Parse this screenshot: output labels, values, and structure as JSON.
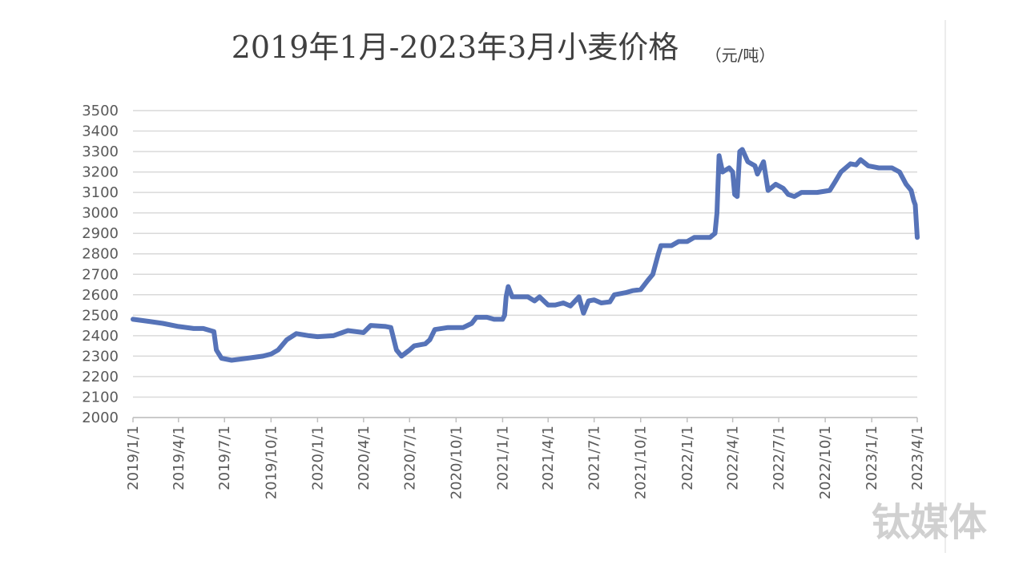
{
  "chart_data": {
    "type": "line",
    "title": "2019年1月-2023年3月小麦价格",
    "unit": "（元/吨）",
    "watermark": "钛媒体",
    "color": "#5673b8",
    "grid": true,
    "xlim": [
      "2019/1/1",
      "2023/4/1"
    ],
    "xticks": [
      "2019/1/1",
      "2019/4/1",
      "2019/7/1",
      "2019/10/1",
      "2020/1/1",
      "2020/4/1",
      "2020/7/1",
      "2020/10/1",
      "2021/1/1",
      "2021/4/1",
      "2021/7/1",
      "2021/10/1",
      "2022/1/1",
      "2022/4/1",
      "2022/7/1",
      "2022/10/1",
      "2023/1/1",
      "2023/4/1"
    ],
    "ylim": [
      2000,
      3500
    ],
    "yticks": [
      2000,
      2100,
      2200,
      2300,
      2400,
      2500,
      2600,
      2700,
      2800,
      2900,
      3000,
      3100,
      3200,
      3300,
      3400,
      3500
    ],
    "x": [
      "2019/1/1",
      "2019/2/1",
      "2019/3/1",
      "2019/4/1",
      "2019/5/1",
      "2019/5/20",
      "2019/6/10",
      "2019/6/15",
      "2019/6/25",
      "2019/7/15",
      "2019/8/15",
      "2019/9/15",
      "2019/10/1",
      "2019/10/15",
      "2019/11/1",
      "2019/11/20",
      "2019/12/15",
      "2020/1/1",
      "2020/2/1",
      "2020/3/1",
      "2020/4/1",
      "2020/4/15",
      "2020/5/15",
      "2020/5/25",
      "2020/6/5",
      "2020/6/15",
      "2020/7/1",
      "2020/7/10",
      "2020/8/1",
      "2020/8/10",
      "2020/8/20",
      "2020/9/15",
      "2020/10/15",
      "2020/11/1",
      "2020/11/10",
      "2020/12/1",
      "2020/12/15",
      "2021/1/1",
      "2021/1/5",
      "2021/1/8",
      "2021/1/12",
      "2021/1/20",
      "2021/2/20",
      "2021/3/5",
      "2021/3/15",
      "2021/4/1",
      "2021/4/15",
      "2021/5/1",
      "2021/5/15",
      "2021/6/1",
      "2021/6/10",
      "2021/6/20",
      "2021/7/1",
      "2021/7/15",
      "2021/8/1",
      "2021/8/10",
      "2021/9/1",
      "2021/9/15",
      "2021/10/1",
      "2021/10/15",
      "2021/10/25",
      "2021/11/5",
      "2021/11/10",
      "2021/12/1",
      "2021/12/15",
      "2022/1/1",
      "2022/1/15",
      "2022/2/15",
      "2022/2/25",
      "2022/3/1",
      "2022/3/5",
      "2022/3/12",
      "2022/3/25",
      "2022/4/1",
      "2022/4/5",
      "2022/4/10",
      "2022/4/15",
      "2022/4/20",
      "2022/5/1",
      "2022/5/15",
      "2022/5/20",
      "2022/6/1",
      "2022/6/10",
      "2022/6/25",
      "2022/7/10",
      "2022/7/20",
      "2022/8/1",
      "2022/8/15",
      "2022/9/15",
      "2022/10/10",
      "2022/10/20",
      "2022/11/1",
      "2022/11/20",
      "2022/12/1",
      "2022/12/10",
      "2022/12/25",
      "2023/1/15",
      "2023/2/10",
      "2023/2/25",
      "2023/3/10",
      "2023/3/20",
      "2023/3/25",
      "2023/3/28",
      "2023/4/1"
    ],
    "values": [
      2480,
      2470,
      2460,
      2445,
      2435,
      2435,
      2420,
      2330,
      2290,
      2280,
      2290,
      2300,
      2310,
      2330,
      2380,
      2410,
      2400,
      2395,
      2400,
      2425,
      2415,
      2450,
      2445,
      2440,
      2330,
      2300,
      2330,
      2350,
      2360,
      2380,
      2430,
      2440,
      2440,
      2460,
      2490,
      2490,
      2480,
      2480,
      2500,
      2590,
      2640,
      2590,
      2590,
      2570,
      2590,
      2550,
      2550,
      2560,
      2545,
      2590,
      2510,
      2570,
      2575,
      2560,
      2565,
      2600,
      2610,
      2620,
      2625,
      2670,
      2700,
      2800,
      2840,
      2840,
      2860,
      2860,
      2880,
      2880,
      2900,
      3000,
      3280,
      3200,
      3220,
      3200,
      3090,
      3080,
      3300,
      3310,
      3250,
      3230,
      3190,
      3250,
      3110,
      3140,
      3120,
      3090,
      3080,
      3100,
      3100,
      3110,
      3150,
      3200,
      3240,
      3235,
      3260,
      3230,
      3220,
      3220,
      3200,
      3140,
      3110,
      3060,
      3040,
      2880
    ]
  }
}
